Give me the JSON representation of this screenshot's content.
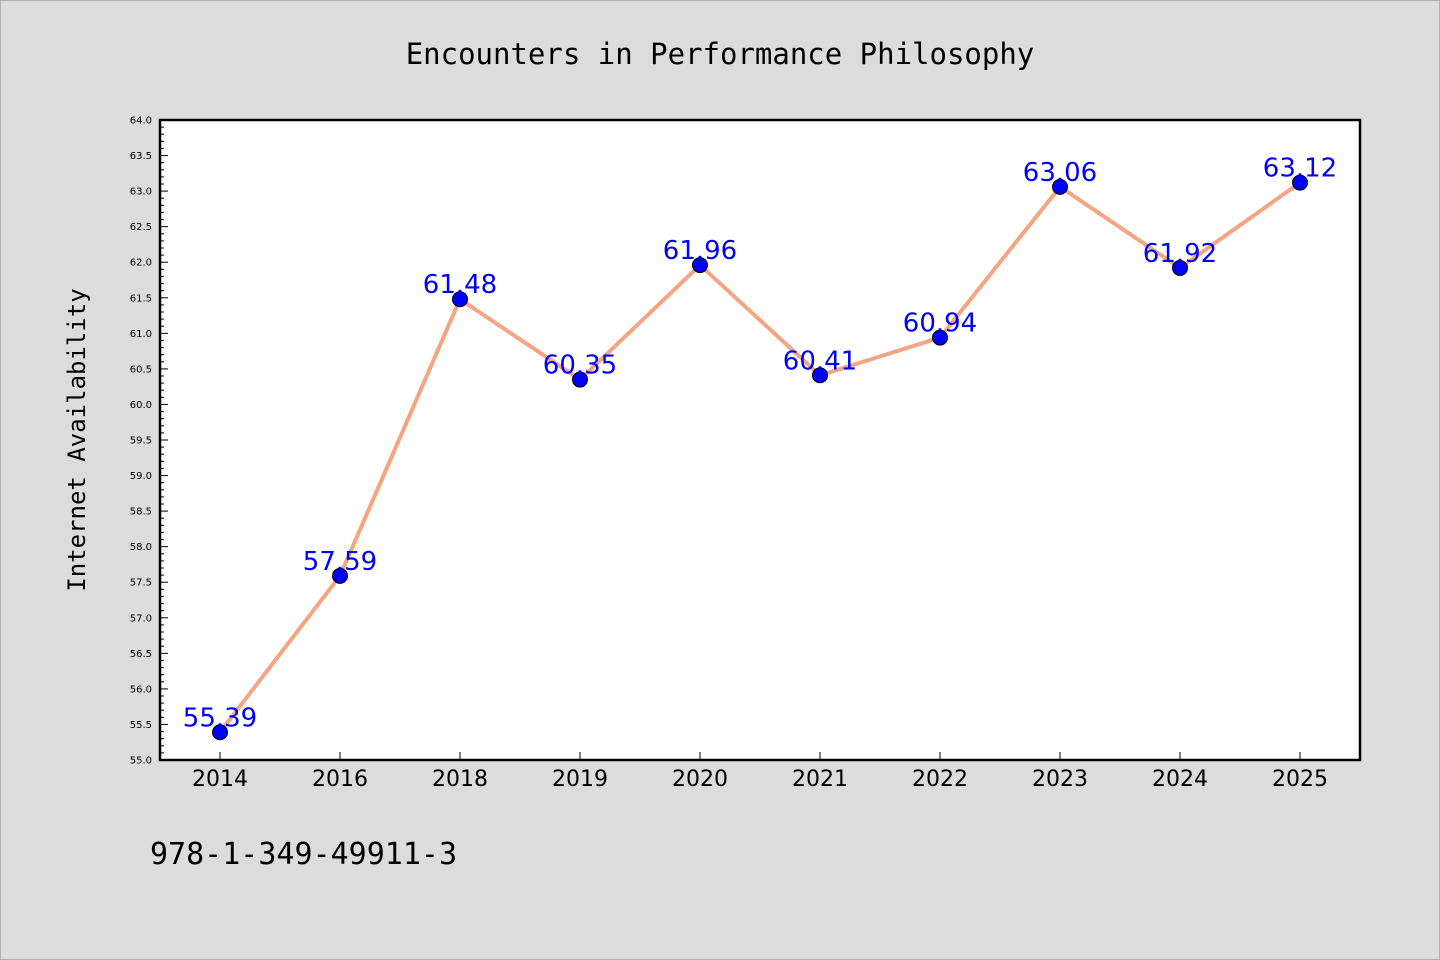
{
  "colors": {
    "background": "#dcdcdc",
    "plot_background": "#ffffff",
    "line": "#f4a582",
    "marker": "#0000ff",
    "data_label": "#0000ff"
  },
  "footer": {
    "code": "978-1-349-49911-3"
  },
  "chart_data": {
    "type": "line",
    "title": "Encounters in Performance Philosophy",
    "xlabel": "",
    "ylabel": "Internet Availability",
    "categories": [
      "2014",
      "2016",
      "2018",
      "2019",
      "2020",
      "2021",
      "2022",
      "2023",
      "2024",
      "2025"
    ],
    "series": [
      {
        "values": [
          55.39,
          57.59,
          61.48,
          60.35,
          61.96,
          60.41,
          60.94,
          63.06,
          61.92,
          63.12
        ],
        "labels": [
          "55.39",
          "57.59",
          "61.48",
          "60.35",
          "61.96",
          "60.41",
          "60.94",
          "63.06",
          "61.92",
          "63.12"
        ]
      }
    ],
    "ylim": [
      55.0,
      64.0
    ],
    "yticks": [
      "55.0",
      "55.5",
      "56.0",
      "56.5",
      "57.0",
      "57.5",
      "58.0",
      "58.5",
      "59.0",
      "59.5",
      "60.0",
      "60.5",
      "61.0",
      "61.5",
      "62.0",
      "62.5",
      "63.0",
      "63.5",
      "64.0"
    ],
    "grid": false,
    "legend": "none",
    "markers": "circle"
  }
}
